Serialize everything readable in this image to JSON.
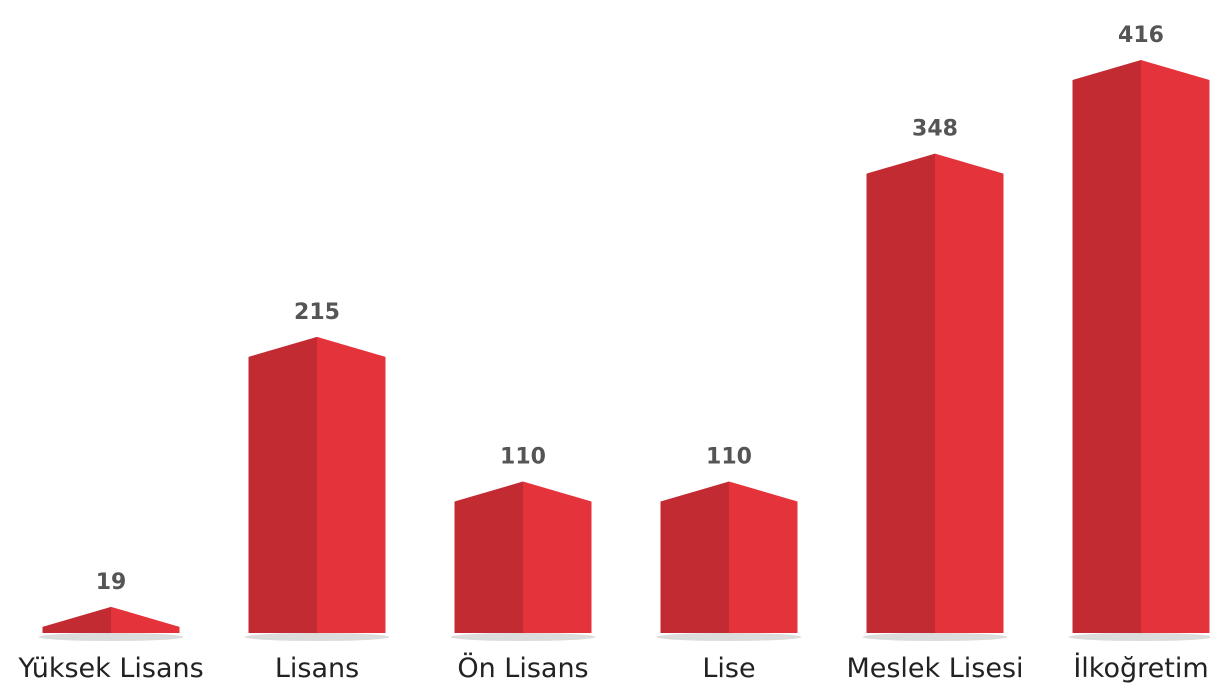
{
  "chart_data": {
    "type": "bar",
    "categories": [
      "Yüksek Lisans",
      "Lisans",
      "Ön Lisans",
      "Lise",
      "Meslek Lisesi",
      "İlkoğretim"
    ],
    "values": [
      19,
      215,
      110,
      110,
      348,
      416
    ],
    "color": "#e5333b"
  }
}
